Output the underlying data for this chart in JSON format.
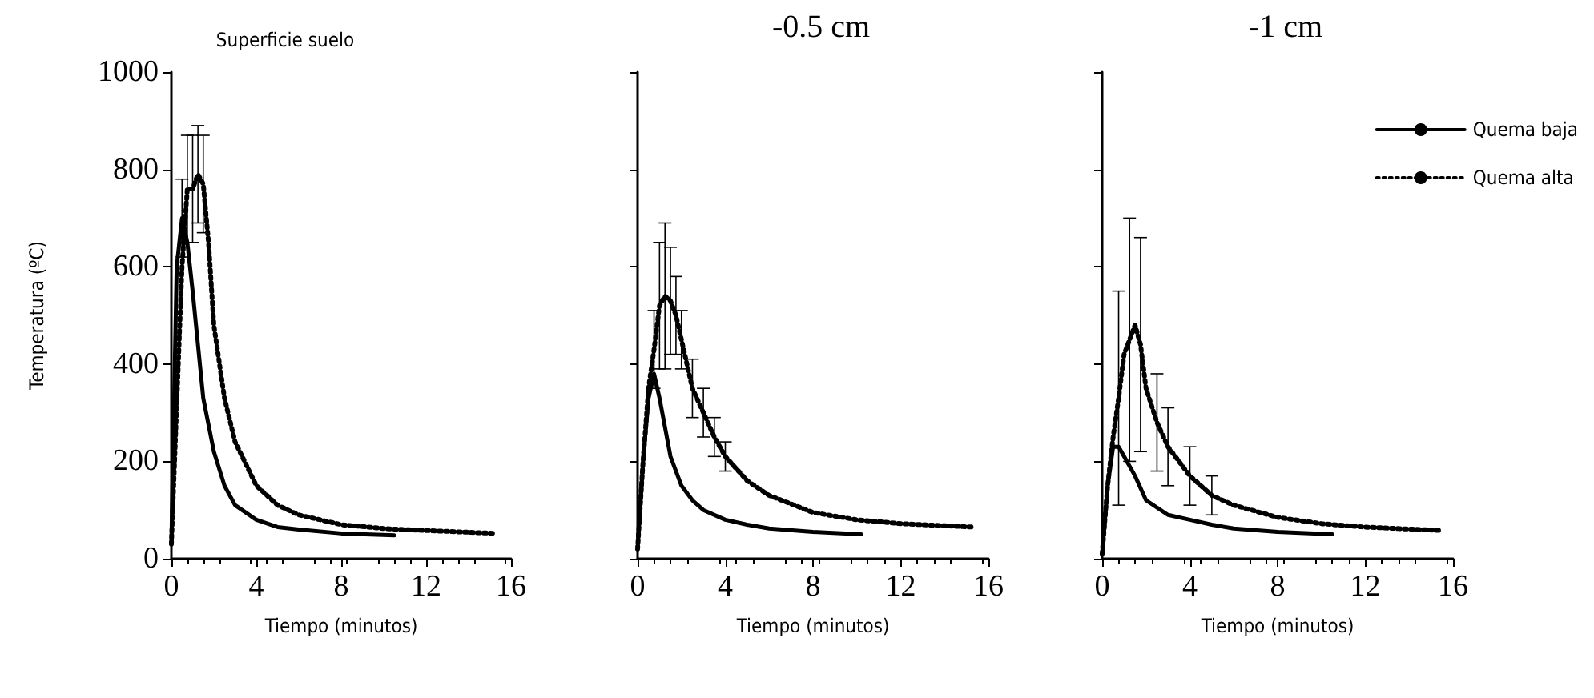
{
  "chart_data": [
    {
      "type": "line",
      "title": "Superficie suelo",
      "xlabel": "Tiempo (minutos)",
      "ylabel": "Temperatura (ºC)",
      "xlim": [
        0,
        16
      ],
      "xticks": [
        0,
        4,
        8,
        12,
        16
      ],
      "ylim": [
        0,
        1000
      ],
      "yticks": [
        0,
        200,
        400,
        600,
        800,
        1000
      ],
      "legend": false,
      "marker": "none",
      "series": [
        {
          "color": "#000000",
          "line_style": "solid",
          "x": [
            0,
            0.25,
            0.5,
            0.75,
            1,
            1.5,
            2,
            2.5,
            3,
            4,
            5,
            6,
            8,
            10.5
          ],
          "values": [
            30,
            600,
            700,
            650,
            550,
            330,
            220,
            150,
            110,
            80,
            65,
            60,
            52,
            48
          ],
          "errors": [
            null,
            null,
            80,
            null,
            null,
            null,
            null,
            null,
            null,
            null,
            null,
            null,
            null,
            null
          ]
        },
        {
          "color": "#000000",
          "line_style": "dotted",
          "x": [
            0,
            0.5,
            0.75,
            1,
            1.25,
            1.5,
            1.75,
            2,
            2.5,
            3,
            4,
            5,
            6,
            8,
            10,
            12,
            15.3
          ],
          "values": [
            30,
            600,
            760,
            760,
            790,
            770,
            650,
            480,
            330,
            240,
            150,
            110,
            90,
            70,
            62,
            58,
            52
          ],
          "errors": [
            null,
            null,
            110,
            110,
            100,
            100,
            null,
            null,
            null,
            null,
            null,
            null,
            null,
            null,
            null,
            null,
            null
          ]
        }
      ]
    },
    {
      "type": "line",
      "title": "-0.5 cm",
      "xlabel": "Tiempo (minutos)",
      "xlim": [
        0,
        16
      ],
      "xticks": [
        0,
        4,
        8,
        12,
        16
      ],
      "ylim": [
        0,
        1000
      ],
      "yticks": [
        0,
        200,
        400,
        600,
        800,
        1000
      ],
      "tick_labels": "x",
      "legend": false,
      "marker": "none",
      "series": [
        {
          "color": "#000000",
          "line_style": "solid",
          "x": [
            0,
            0.25,
            0.5,
            0.75,
            1,
            1.5,
            2,
            2.5,
            3,
            4,
            5,
            6,
            8,
            10.2
          ],
          "values": [
            20,
            200,
            330,
            380,
            330,
            210,
            150,
            120,
            100,
            80,
            70,
            62,
            55,
            50
          ],
          "errors": [
            null,
            null,
            null,
            null,
            null,
            null,
            null,
            null,
            null,
            null,
            null,
            null,
            null,
            null
          ]
        },
        {
          "color": "#000000",
          "line_style": "dotted",
          "x": [
            0,
            0.25,
            0.5,
            0.75,
            1,
            1.25,
            1.5,
            1.75,
            2,
            2.5,
            3,
            3.5,
            4,
            5,
            6,
            8,
            10,
            12,
            15.3
          ],
          "values": [
            20,
            200,
            350,
            430,
            520,
            540,
            530,
            500,
            450,
            350,
            300,
            250,
            210,
            160,
            130,
            95,
            80,
            72,
            65
          ],
          "errors": [
            null,
            null,
            null,
            80,
            130,
            150,
            110,
            80,
            60,
            60,
            50,
            40,
            30,
            null,
            null,
            null,
            null,
            null,
            null
          ]
        }
      ]
    },
    {
      "type": "line",
      "title": "-1 cm",
      "xlabel": "Tiempo (minutos)",
      "xlim": [
        0,
        16
      ],
      "xticks": [
        0,
        4,
        8,
        12,
        16
      ],
      "ylim": [
        0,
        1000
      ],
      "yticks": [
        0,
        200,
        400,
        600,
        800,
        1000
      ],
      "tick_labels": "x",
      "legend": "top right",
      "marker": "none",
      "series": [
        {
          "name": "Quema baja",
          "color": "#000000",
          "line_style": "solid",
          "x": [
            0,
            0.25,
            0.5,
            0.75,
            1,
            1.5,
            2,
            3,
            4,
            5,
            6,
            8,
            10.5
          ],
          "values": [
            10,
            150,
            230,
            230,
            210,
            170,
            120,
            90,
            80,
            70,
            62,
            55,
            50
          ],
          "errors": [
            null,
            null,
            null,
            null,
            null,
            null,
            null,
            null,
            null,
            null,
            null,
            null,
            null
          ]
        },
        {
          "name": "Quema alta",
          "color": "#000000",
          "line_style": "dotted",
          "x": [
            0,
            0.25,
            0.5,
            0.75,
            1,
            1.25,
            1.5,
            1.75,
            2,
            2.5,
            3,
            4,
            5,
            6,
            8,
            10,
            12,
            15.5
          ],
          "values": [
            10,
            150,
            250,
            330,
            420,
            450,
            480,
            440,
            350,
            280,
            230,
            170,
            130,
            110,
            85,
            72,
            65,
            58
          ],
          "errors": [
            null,
            null,
            null,
            220,
            null,
            250,
            null,
            220,
            null,
            100,
            80,
            60,
            40,
            null,
            null,
            null,
            null,
            null
          ]
        }
      ]
    }
  ]
}
